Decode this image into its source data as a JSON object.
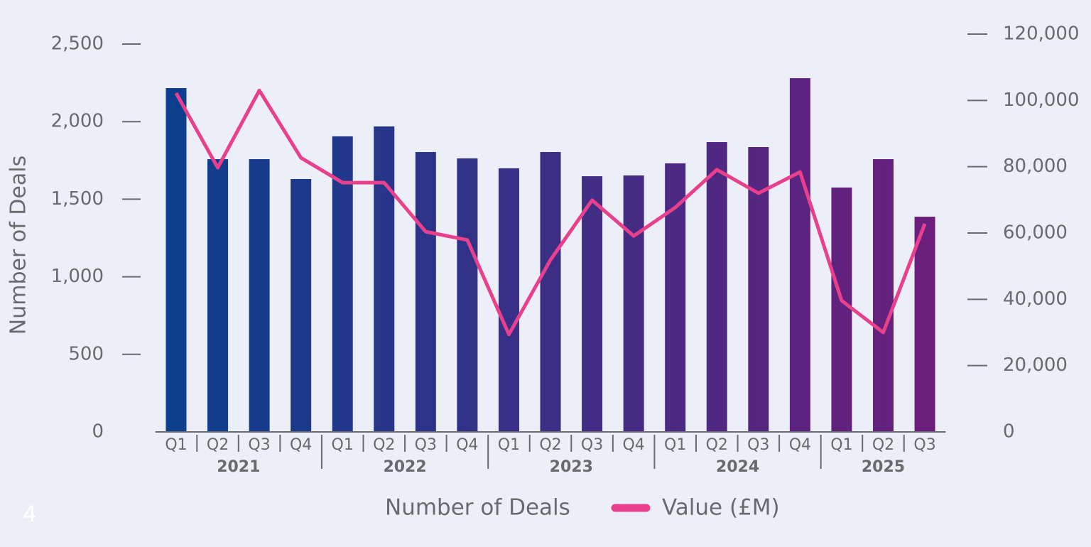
{
  "chart_data": {
    "type": "bar-line",
    "y_label": "Number of Deals",
    "categories": [
      "Q1",
      "Q2",
      "Q3",
      "Q4",
      "Q1",
      "Q2",
      "Q3",
      "Q4",
      "Q1",
      "Q2",
      "Q3",
      "Q4",
      "Q1",
      "Q2",
      "Q3",
      "Q4",
      "Q1",
      "Q2",
      "Q3"
    ],
    "x_groups": [
      "2021",
      "2022",
      "2023",
      "2024",
      "2025"
    ],
    "series": [
      {
        "name": "Number of Deals",
        "type": "bar",
        "color": "#0a3f8e",
        "color_end": "#6d1e7c",
        "values": [
          2216,
          1758,
          1758,
          1630,
          1905,
          1969,
          1804,
          1763,
          1699,
          1804,
          1648,
          1653,
          1731,
          1868,
          1836,
          2280,
          1575,
          1758,
          1387
        ]
      },
      {
        "name": "Value (£M)",
        "type": "line",
        "axis": "y2",
        "color": "#e8408c",
        "values": [
          102200,
          79700,
          103000,
          82700,
          75200,
          75200,
          60400,
          57900,
          29400,
          51900,
          69900,
          59100,
          67700,
          79100,
          72000,
          78400,
          39600,
          30000,
          62800
        ]
      }
    ],
    "ylim": [
      0,
      2500
    ],
    "yticks": [
      0,
      500,
      {
        "value": 1000,
        "label": "1,000"
      },
      {
        "value": 1500,
        "label": "1,500"
      },
      {
        "value": 2000,
        "label": "2,000"
      },
      {
        "value": 2500,
        "label": "2,500"
      }
    ],
    "y2lim": [
      0,
      120000
    ],
    "y2ticks": [
      0,
      {
        "value": 20000,
        "label": "20,000"
      },
      {
        "value": 40000,
        "label": "40,000"
      },
      {
        "value": 60000,
        "label": "60,000"
      },
      {
        "value": 80000,
        "label": "80,000"
      },
      {
        "value": 100000,
        "label": "100,000"
      },
      {
        "value": 120000,
        "label": "120,000"
      }
    ],
    "legend": "bottom",
    "page_number": "4"
  }
}
